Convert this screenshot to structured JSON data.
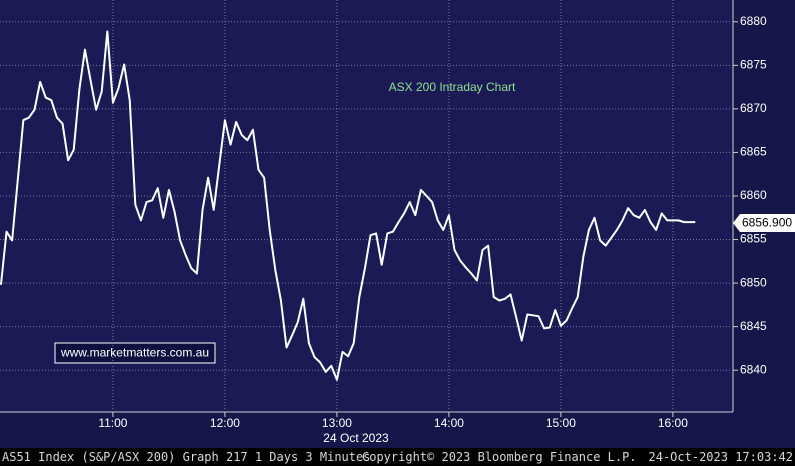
{
  "chart_data": {
    "type": "line",
    "annotation": "ASX 200 Intraday Chart",
    "watermark": "www.marketmatters.com.au",
    "x_axis_label": "24 Oct 2023",
    "footer_left": "AS51 Index (S&P/ASX 200) Graph 217 1 Days 3 Minutes",
    "footer_center": "Copyright© 2023 Bloomberg Finance L.P.",
    "footer_right": "24-Oct-2023 17:03:42",
    "last_value": {
      "value": 6856.9,
      "label": "6856.900"
    },
    "x": [
      600,
      603,
      606,
      609,
      612,
      615,
      618,
      621,
      624,
      627,
      630,
      633,
      636,
      639,
      642,
      645,
      648,
      651,
      654,
      657,
      660,
      663,
      666,
      669,
      672,
      675,
      678,
      681,
      684,
      687,
      690,
      693,
      696,
      699,
      702,
      705,
      708,
      711,
      714,
      717,
      720,
      723,
      726,
      729,
      732,
      735,
      738,
      741,
      744,
      747,
      750,
      753,
      756,
      759,
      762,
      765,
      768,
      771,
      774,
      777,
      780,
      783,
      786,
      789,
      792,
      795,
      798,
      801,
      804,
      807,
      810,
      813,
      816,
      819,
      822,
      825,
      828,
      831,
      834,
      837,
      840,
      843,
      846,
      849,
      852,
      855,
      858,
      861,
      864,
      867,
      870,
      873,
      876,
      879,
      882,
      885,
      888,
      891,
      894,
      897,
      900,
      903,
      906,
      909,
      912,
      915,
      918,
      921,
      924,
      927,
      930,
      933,
      936,
      939,
      942,
      945,
      948,
      951,
      954,
      957,
      960,
      963,
      966,
      969,
      972
    ],
    "series": [
      {
        "color": "#ffffff",
        "values": [
          6849.8,
          6855.9,
          6854.9,
          6861.8,
          6868.7,
          6869.0,
          6869.9,
          6873.1,
          6871.3,
          6871.0,
          6869.0,
          6868.3,
          6864.1,
          6865.3,
          6872.2,
          6876.8,
          6873.3,
          6869.9,
          6872.0,
          6878.9,
          6870.7,
          6872.4,
          6875.1,
          6871.0,
          6859.0,
          6857.2,
          6859.3,
          6859.5,
          6860.9,
          6857.5,
          6860.7,
          6858.2,
          6854.9,
          6853.2,
          6851.7,
          6851.1,
          6858.4,
          6862.1,
          6858.4,
          6863.6,
          6868.7,
          6865.9,
          6868.5,
          6867.0,
          6866.4,
          6867.6,
          6863.0,
          6862.1,
          6856.1,
          6851.5,
          6848.0,
          6842.6,
          6844.0,
          6845.5,
          6848.2,
          6843.1,
          6841.5,
          6840.9,
          6839.8,
          6840.5,
          6838.9,
          6842.1,
          6841.6,
          6843.1,
          6848.4,
          6851.7,
          6855.5,
          6855.7,
          6852.1,
          6855.7,
          6855.9,
          6857.0,
          6858.0,
          6859.3,
          6857.8,
          6860.7,
          6860.0,
          6859.3,
          6857.2,
          6856.1,
          6857.8,
          6853.8,
          6852.6,
          6851.8,
          6851.1,
          6850.3,
          6853.8,
          6854.3,
          6848.4,
          6848.0,
          6848.2,
          6848.7,
          6846.1,
          6843.4,
          6846.4,
          6846.3,
          6846.2,
          6844.8,
          6844.9,
          6846.9,
          6845.1,
          6845.7,
          6847.1,
          6848.4,
          6853.0,
          6856.1,
          6857.5,
          6854.9,
          6854.3,
          6855.2,
          6856.1,
          6857.2,
          6858.6,
          6857.8,
          6857.5,
          6858.4,
          6857.0,
          6856.1,
          6858.0,
          6857.2,
          6857.2,
          6857.2,
          6857.0,
          6857.0,
          6857.0
        ]
      }
    ],
    "xlim": [
      599.5,
      992.2
    ],
    "xticks": [
      {
        "value": 660,
        "label": "11:00"
      },
      {
        "value": 720,
        "label": "12:00"
      },
      {
        "value": 780,
        "label": "13:00"
      },
      {
        "value": 840,
        "label": "14:00"
      },
      {
        "value": 900,
        "label": "15:00"
      },
      {
        "value": 960,
        "label": "16:00"
      }
    ],
    "ylim": [
      6835.2,
      6882.5
    ],
    "yticks": [
      6840,
      6845,
      6850,
      6855,
      6860,
      6865,
      6870,
      6875,
      6880
    ],
    "grid": true
  }
}
